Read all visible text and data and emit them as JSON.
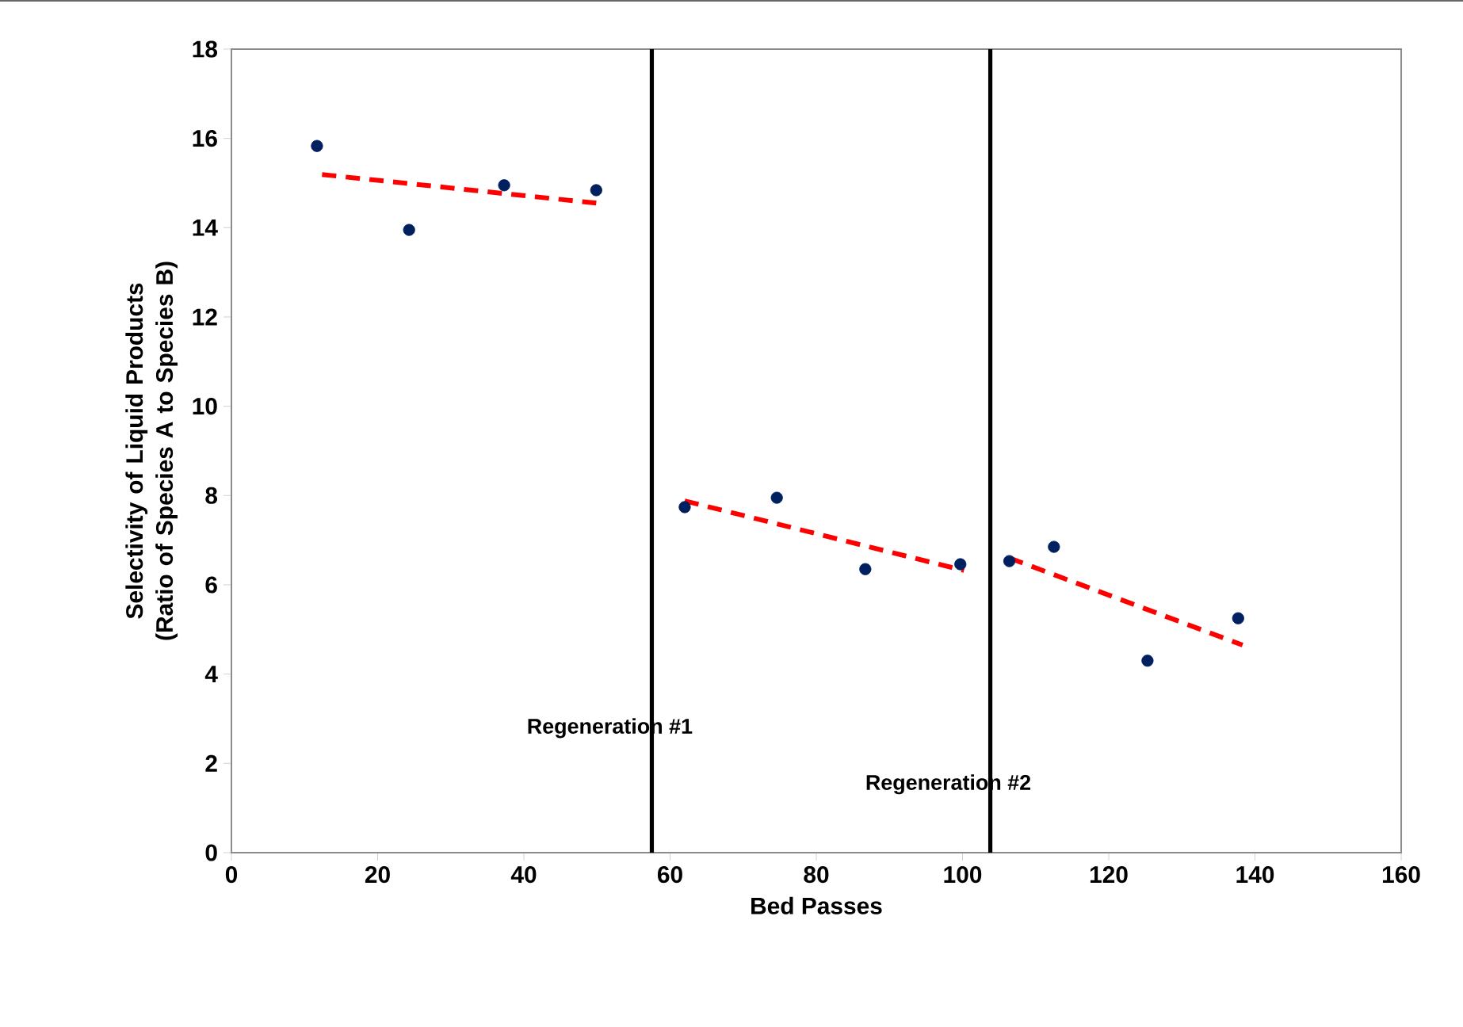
{
  "chart_data": {
    "type": "scatter",
    "xlabel": "Bed Passes",
    "ylabel": "Selectivity of Liquid Products (Ratio of Species A to Species B)",
    "xlim": [
      0,
      160
    ],
    "ylim": [
      0,
      18
    ],
    "xticks": [
      0,
      20,
      40,
      60,
      80,
      100,
      120,
      140,
      160
    ],
    "yticks": [
      0,
      2,
      4,
      6,
      8,
      10,
      12,
      14,
      16,
      18
    ],
    "grid": false,
    "series": [
      {
        "color": "#002060",
        "marker": "circle",
        "x": [
          11.7,
          24.3,
          37.3,
          49.9
        ],
        "values": [
          15.83,
          13.95,
          14.95,
          14.84
        ]
      },
      {
        "color": "#002060",
        "marker": "circle",
        "x": [
          62.0,
          74.6,
          86.7,
          99.7
        ],
        "values": [
          7.74,
          7.95,
          6.35,
          6.46
        ]
      },
      {
        "color": "#002060",
        "marker": "circle",
        "x": [
          106.4,
          112.5,
          125.3,
          137.7
        ],
        "values": [
          6.53,
          6.85,
          4.3,
          5.25
        ]
      },
      {
        "type": "line",
        "color": "#ff0000",
        "line_style": "dashed",
        "marker": "none",
        "x": [
          12.4,
          49.9
        ],
        "values": [
          15.19,
          14.55
        ]
      },
      {
        "type": "line",
        "color": "#ff0000",
        "line_style": "dashed",
        "marker": "none",
        "x": [
          62.0,
          100.2
        ],
        "values": [
          7.88,
          6.32
        ]
      },
      {
        "type": "line",
        "color": "#ff0000",
        "line_style": "dashed",
        "marker": "none",
        "x": [
          106.4,
          138.3
        ],
        "values": [
          6.6,
          4.65
        ]
      }
    ],
    "ref_lines": [
      {
        "axis": "x",
        "value": 57.5,
        "label": "Regeneration #1",
        "color": "#000000"
      },
      {
        "axis": "x",
        "value": 103.8,
        "label": "Regeneration #2",
        "color": "#000000"
      }
    ]
  }
}
